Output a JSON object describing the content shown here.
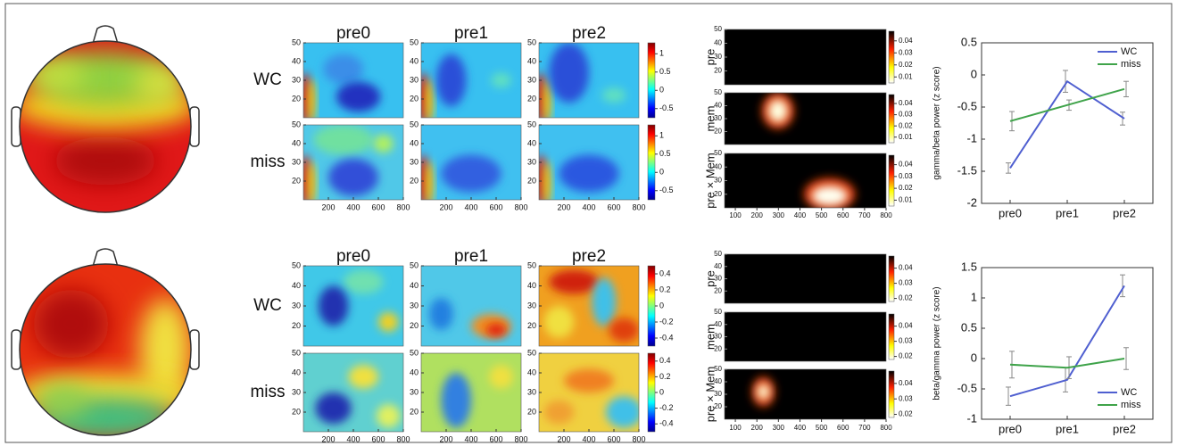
{
  "chart_data": [
    {
      "type": "line",
      "ylabel": "gamma/beta power (z score)",
      "categories": [
        "pre0",
        "pre1",
        "pre2"
      ],
      "ylim": [
        -2,
        0.5
      ],
      "yticks": [
        -2,
        -1.5,
        -1,
        -0.5,
        0,
        0.5
      ],
      "legend": "upper right",
      "series": [
        {
          "name": "WC",
          "color": "#4f5fd0",
          "values": [
            -1.45,
            -0.1,
            -0.68
          ],
          "errors": [
            0.08,
            0.17,
            0.1
          ]
        },
        {
          "name": "miss",
          "color": "#3fa34a",
          "values": [
            -0.72,
            -0.47,
            -0.22
          ],
          "errors": [
            0.15,
            0.08,
            0.12
          ]
        }
      ]
    },
    {
      "type": "line",
      "ylabel": "beta/gamma power (z score)",
      "categories": [
        "pre0",
        "pre1",
        "pre2"
      ],
      "ylim": [
        -1,
        1.5
      ],
      "yticks": [
        -1,
        -0.5,
        0,
        0.5,
        1,
        1.5
      ],
      "legend": "lower right",
      "series": [
        {
          "name": "WC",
          "color": "#4f5fd0",
          "values": [
            -0.62,
            -0.35,
            1.2
          ],
          "errors": [
            0.15,
            0.2,
            0.18
          ]
        },
        {
          "name": "miss",
          "color": "#3fa34a",
          "values": [
            -0.1,
            -0.15,
            0.0
          ],
          "errors": [
            0.22,
            0.18,
            0.18
          ]
        }
      ]
    }
  ],
  "tf_maps": [
    {
      "columns": [
        "pre0",
        "pre1",
        "pre2"
      ],
      "rows": [
        "WC",
        "miss"
      ],
      "xlim": [
        0,
        800
      ],
      "xticks": [
        200,
        400,
        600,
        800
      ],
      "ylim": [
        10,
        50
      ],
      "yticks": [
        20,
        30,
        40,
        50
      ],
      "clim": [
        -0.75,
        1.3
      ],
      "cticks": [
        -0.5,
        0,
        0.5,
        1
      ]
    },
    {
      "columns": [
        "pre0",
        "pre1",
        "pre2"
      ],
      "rows": [
        "WC",
        "miss"
      ],
      "xlim": [
        0,
        800
      ],
      "xticks": [
        200,
        400,
        600,
        800
      ],
      "ylim": [
        10,
        50
      ],
      "yticks": [
        20,
        30,
        40,
        50
      ],
      "clim": [
        -0.5,
        0.5
      ],
      "cticks": [
        -0.4,
        -0.2,
        0,
        0.2,
        0.4
      ]
    }
  ],
  "stat_maps": [
    {
      "rows": [
        "pre",
        "mem",
        "pre × Mem"
      ],
      "xlim": [
        50,
        800
      ],
      "xticks": [
        100,
        200,
        300,
        400,
        500,
        600,
        700,
        800
      ],
      "ylim": [
        10,
        50
      ],
      "yticks": [
        20,
        30,
        40,
        50
      ],
      "clim": [
        0.005,
        0.048
      ],
      "cticks": [
        0.01,
        0.02,
        0.03,
        0.04
      ]
    },
    {
      "rows": [
        "pre",
        "mem",
        "pre × Mem"
      ],
      "xlim": [
        50,
        800
      ],
      "xticks": [
        100,
        200,
        300,
        400,
        500,
        600,
        700,
        800
      ],
      "ylim": [
        10,
        50
      ],
      "yticks": [
        20,
        30,
        40,
        50
      ],
      "clim": [
        0.018,
        0.048
      ],
      "cticks": [
        0.02,
        0.03,
        0.04
      ]
    }
  ]
}
